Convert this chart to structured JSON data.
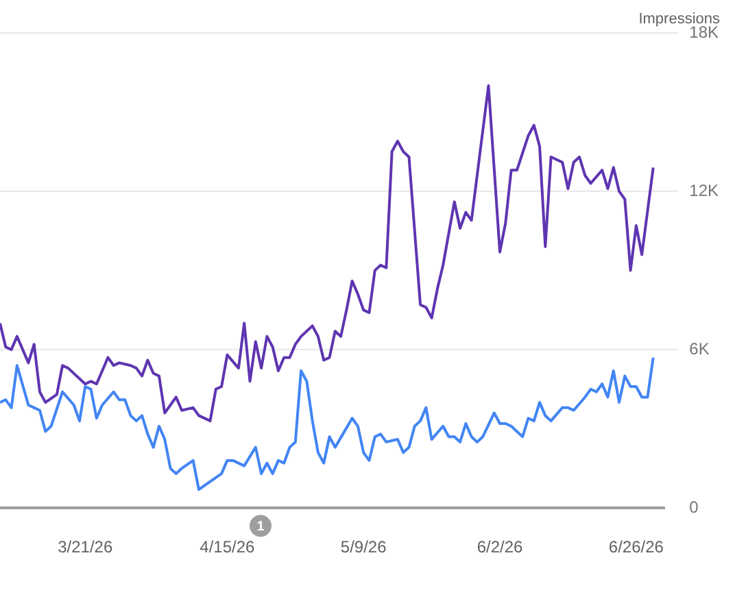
{
  "chart_data": {
    "type": "line",
    "y2label": "Impressions",
    "annotations": [
      "1"
    ],
    "xlim": [
      "2026-03-06",
      "2026-07-01"
    ],
    "xticks": [
      {
        "value": "2026-03-21",
        "label": "3/21/26"
      },
      {
        "value": "2026-04-15",
        "label": "4/15/26"
      },
      {
        "value": "2026-05-09",
        "label": "5/9/26"
      },
      {
        "value": "2026-06-02",
        "label": "6/2/26"
      },
      {
        "value": "2026-06-26",
        "label": "6/26/26"
      }
    ],
    "y2lim": [
      0,
      18000
    ],
    "y2ticks": [
      {
        "value": 0,
        "label": "0"
      },
      {
        "value": 6000,
        "label": "6K"
      },
      {
        "value": 12000,
        "label": "12K"
      },
      {
        "value": 18000,
        "label": "18K"
      }
    ],
    "grid": "y",
    "legend": false,
    "marker": "none",
    "line_style": "solid",
    "series": [
      {
        "color": "#5e35b1",
        "axis": "y2",
        "x": [
          "2026-03-06",
          "2026-03-07",
          "2026-03-08",
          "2026-03-09",
          "2026-03-11",
          "2026-03-12",
          "2026-03-13",
          "2026-03-14",
          "2026-03-16",
          "2026-03-17",
          "2026-03-18",
          "2026-03-21",
          "2026-03-22",
          "2026-03-23",
          "2026-03-25",
          "2026-03-26",
          "2026-03-27",
          "2026-03-29",
          "2026-03-30",
          "2026-03-31",
          "2026-04-01",
          "2026-04-02",
          "2026-04-03",
          "2026-04-04",
          "2026-04-06",
          "2026-04-07",
          "2026-04-09",
          "2026-04-10",
          "2026-04-12",
          "2026-04-13",
          "2026-04-14",
          "2026-04-15",
          "2026-04-17",
          "2026-04-18",
          "2026-04-19",
          "2026-04-20",
          "2026-04-21",
          "2026-04-22",
          "2026-04-23",
          "2026-04-24",
          "2026-04-25",
          "2026-04-26",
          "2026-04-27",
          "2026-04-28",
          "2026-04-30",
          "2026-05-01",
          "2026-05-02",
          "2026-05-03",
          "2026-05-04",
          "2026-05-05",
          "2026-05-06",
          "2026-05-07",
          "2026-05-08",
          "2026-05-09",
          "2026-05-10",
          "2026-05-11",
          "2026-05-12",
          "2026-05-13",
          "2026-05-14",
          "2026-05-15",
          "2026-05-16",
          "2026-05-17",
          "2026-05-19",
          "2026-05-20",
          "2026-05-21",
          "2026-05-22",
          "2026-05-23",
          "2026-05-25",
          "2026-05-26",
          "2026-05-27",
          "2026-05-28",
          "2026-05-31",
          "2026-06-02",
          "2026-06-03",
          "2026-06-04",
          "2026-06-05",
          "2026-06-07",
          "2026-06-08",
          "2026-06-09",
          "2026-06-10",
          "2026-06-11",
          "2026-06-13",
          "2026-06-14",
          "2026-06-15",
          "2026-06-16",
          "2026-06-17",
          "2026-06-18",
          "2026-06-20",
          "2026-06-21",
          "2026-06-22",
          "2026-06-23",
          "2026-06-24",
          "2026-06-25",
          "2026-06-26",
          "2026-06-27",
          "2026-06-29"
        ],
        "values": [
          7000,
          6100,
          6000,
          6500,
          5500,
          6200,
          4400,
          4000,
          4300,
          5400,
          5300,
          4700,
          4800,
          4700,
          5700,
          5400,
          5500,
          5400,
          5300,
          5000,
          5600,
          5100,
          5000,
          3600,
          4200,
          3700,
          3800,
          3500,
          3300,
          4500,
          4600,
          5800,
          5300,
          7000,
          4800,
          6300,
          5300,
          6500,
          6100,
          5200,
          5700,
          5700,
          6200,
          6500,
          6900,
          6500,
          5600,
          5700,
          6700,
          6500,
          7500,
          8600,
          8100,
          7500,
          7400,
          9000,
          9200,
          9100,
          13500,
          13900,
          13500,
          13300,
          7700,
          7600,
          7200,
          8300,
          9200,
          11600,
          10600,
          11200,
          10900,
          16000,
          9700,
          10800,
          12800,
          12800,
          14100,
          14500,
          13700,
          9900,
          13300,
          13100,
          12100,
          13100,
          13300,
          12600,
          12300,
          12800,
          12100,
          12900,
          12000,
          11700,
          9000,
          10700,
          9600,
          12900
        ]
      },
      {
        "color": "#4285f4",
        "axis": "y2",
        "x": [
          "2026-03-06",
          "2026-03-07",
          "2026-03-08",
          "2026-03-09",
          "2026-03-11",
          "2026-03-12",
          "2026-03-13",
          "2026-03-14",
          "2026-03-15",
          "2026-03-17",
          "2026-03-19",
          "2026-03-20",
          "2026-03-21",
          "2026-03-22",
          "2026-03-23",
          "2026-03-24",
          "2026-03-26",
          "2026-03-27",
          "2026-03-28",
          "2026-03-29",
          "2026-03-30",
          "2026-03-31",
          "2026-04-01",
          "2026-04-02",
          "2026-04-03",
          "2026-04-04",
          "2026-04-05",
          "2026-04-06",
          "2026-04-07",
          "2026-04-09",
          "2026-04-10",
          "2026-04-12",
          "2026-04-14",
          "2026-04-15",
          "2026-04-16",
          "2026-04-18",
          "2026-04-20",
          "2026-04-21",
          "2026-04-22",
          "2026-04-23",
          "2026-04-24",
          "2026-04-25",
          "2026-04-26",
          "2026-04-27",
          "2026-04-28",
          "2026-04-29",
          "2026-04-30",
          "2026-05-01",
          "2026-05-02",
          "2026-05-03",
          "2026-05-04",
          "2026-05-07",
          "2026-05-08",
          "2026-05-09",
          "2026-05-10",
          "2026-05-11",
          "2026-05-12",
          "2026-05-13",
          "2026-05-15",
          "2026-05-16",
          "2026-05-17",
          "2026-05-18",
          "2026-05-19",
          "2026-05-20",
          "2026-05-21",
          "2026-05-23",
          "2026-05-24",
          "2026-05-25",
          "2026-05-26",
          "2026-05-27",
          "2026-05-28",
          "2026-05-29",
          "2026-05-30",
          "2026-06-01",
          "2026-06-02",
          "2026-06-03",
          "2026-06-04",
          "2026-06-06",
          "2026-06-07",
          "2026-06-08",
          "2026-06-09",
          "2026-06-10",
          "2026-06-11",
          "2026-06-13",
          "2026-06-14",
          "2026-06-15",
          "2026-06-17",
          "2026-06-18",
          "2026-06-19",
          "2026-06-20",
          "2026-06-21",
          "2026-06-22",
          "2026-06-23",
          "2026-06-24",
          "2026-06-25",
          "2026-06-26",
          "2026-06-27",
          "2026-06-28",
          "2026-06-29"
        ],
        "values": [
          4000,
          4100,
          3800,
          5400,
          3900,
          3800,
          3700,
          2900,
          3100,
          4400,
          3900,
          3300,
          4600,
          4500,
          3400,
          3900,
          4400,
          4100,
          4100,
          3500,
          3300,
          3500,
          2800,
          2300,
          3100,
          2600,
          1500,
          1300,
          1500,
          1800,
          700,
          1000,
          1300,
          1800,
          1800,
          1600,
          2300,
          1300,
          1700,
          1300,
          1800,
          1700,
          2300,
          2500,
          5200,
          4800,
          3300,
          2100,
          1700,
          2700,
          2300,
          3400,
          3100,
          2100,
          1800,
          2700,
          2800,
          2500,
          2600,
          2100,
          2300,
          3100,
          3300,
          3800,
          2600,
          3100,
          2700,
          2700,
          2500,
          3200,
          2700,
          2500,
          2700,
          3600,
          3200,
          3200,
          3100,
          2700,
          3400,
          3300,
          4000,
          3500,
          3300,
          3800,
          3800,
          3700,
          4200,
          4500,
          4400,
          4700,
          4200,
          5200,
          4000,
          5000,
          4600,
          4600,
          4200,
          4200,
          5700
        ]
      }
    ]
  }
}
